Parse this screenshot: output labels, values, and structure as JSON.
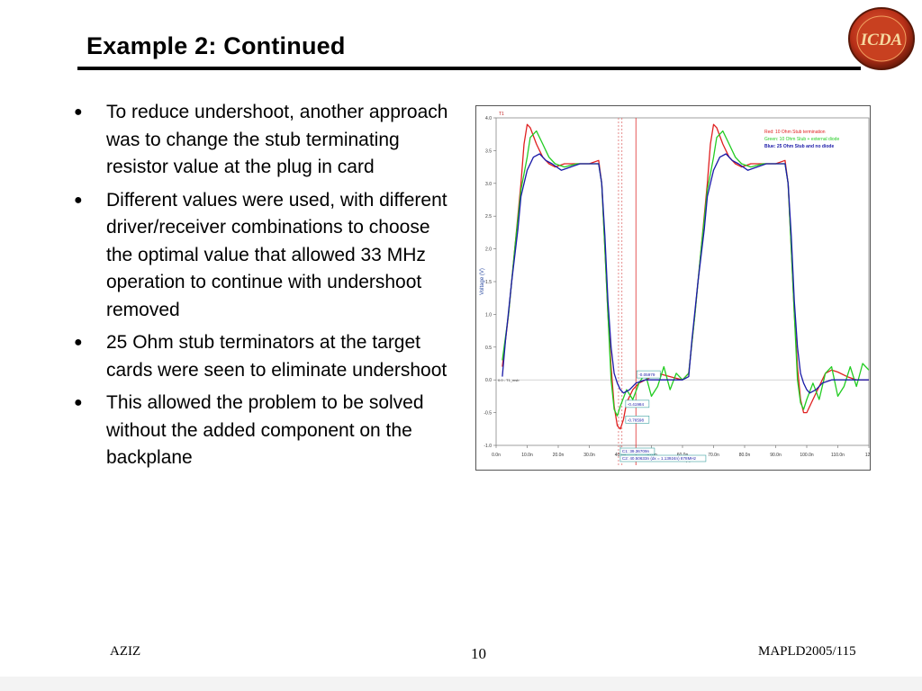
{
  "slide": {
    "title": "Example 2: Continued",
    "bullets": [
      "To reduce undershoot, another approach was to change the stub terminating resistor value at the plug in card",
      "Different values were used, with different driver/receiver combinations to choose the optimal value that allowed 33 MHz operation to continue with undershoot removed",
      "25 Ohm stub terminators at the target cards were seen to eliminate undershoot",
      "This allowed the problem to be solved without the added component on the backplane"
    ],
    "bullet_symbol": "●"
  },
  "logo": {
    "icon": "icda-logo",
    "text": "ICDA"
  },
  "footer": {
    "left": "AZIZ",
    "center": "10",
    "right": "MAPLD2005/115"
  },
  "chart_data": {
    "type": "line",
    "marker_label": "T1",
    "ylabel": "Voltage (V)",
    "xlabel": "Time (s)",
    "x_ticks": [
      "0.0n",
      "10.0n",
      "20.0n",
      "30.0n",
      "40.0n",
      "50.0n",
      "60.0n",
      "70.0n",
      "80.0n",
      "90.0n",
      "100.0n",
      "110.0n",
      "120"
    ],
    "y_ticks": [
      "4.0",
      "3.5",
      "3.0",
      "2.5",
      "2.0",
      "1.5",
      "1.0",
      "0.5",
      "0.0",
      "-0.5",
      "-1.0"
    ],
    "ylim": [
      -1.0,
      4.0
    ],
    "xlim": [
      0,
      120
    ],
    "zero_label": "0.0 - T1_msb",
    "legend": [
      {
        "name": "Red: 10 Ohm Stub termination",
        "color": "#e02020"
      },
      {
        "name": "Green: 10 Ohm Stub + external diode",
        "color": "#22cc22"
      },
      {
        "name": "Blue: 25 Ohm Stub and no diode",
        "color": "#1a1aa8"
      }
    ],
    "annotations": [
      "-0.05979",
      "-0.41984",
      "-0.76598"
    ],
    "cursors": [
      "C1: 39.36709n",
      "C2: 40.50633n (dx = 1.13924n) 878MHz"
    ],
    "cursor_x": [
      39.4,
      40.5,
      45.0
    ],
    "series": [
      {
        "name": "Red: 10 Ohm Stub termination",
        "color": "#e02020",
        "points": [
          [
            2,
            0.2
          ],
          [
            4,
            1.0
          ],
          [
            6,
            2.0
          ],
          [
            8,
            3.0
          ],
          [
            9,
            3.6
          ],
          [
            10,
            3.9
          ],
          [
            11,
            3.85
          ],
          [
            13,
            3.6
          ],
          [
            15,
            3.4
          ],
          [
            17,
            3.3
          ],
          [
            19,
            3.25
          ],
          [
            22,
            3.3
          ],
          [
            26,
            3.3
          ],
          [
            30,
            3.3
          ],
          [
            33,
            3.35
          ],
          [
            34,
            3.0
          ],
          [
            35,
            2.0
          ],
          [
            36,
            1.0
          ],
          [
            37,
            0.2
          ],
          [
            38,
            -0.4
          ],
          [
            39,
            -0.7
          ],
          [
            40,
            -0.75
          ],
          [
            41,
            -0.6
          ],
          [
            42,
            -0.35
          ],
          [
            44,
            -0.15
          ],
          [
            46,
            -0.05
          ],
          [
            49,
            0.02
          ],
          [
            52,
            0.1
          ],
          [
            56,
            0.05
          ],
          [
            60,
            0.0
          ],
          [
            62,
            0.1
          ],
          [
            64,
            1.0
          ],
          [
            66,
            2.0
          ],
          [
            68,
            3.0
          ],
          [
            69,
            3.6
          ],
          [
            70,
            3.9
          ],
          [
            71,
            3.85
          ],
          [
            73,
            3.6
          ],
          [
            75,
            3.4
          ],
          [
            77,
            3.3
          ],
          [
            79,
            3.25
          ],
          [
            82,
            3.3
          ],
          [
            86,
            3.3
          ],
          [
            90,
            3.3
          ],
          [
            93,
            3.35
          ],
          [
            94,
            3.0
          ],
          [
            95,
            2.0
          ],
          [
            96,
            1.0
          ],
          [
            97,
            0.2
          ],
          [
            98,
            -0.3
          ],
          [
            99,
            -0.5
          ],
          [
            100,
            -0.5
          ],
          [
            102,
            -0.3
          ],
          [
            104,
            -0.1
          ],
          [
            106,
            0.1
          ],
          [
            108,
            0.15
          ],
          [
            110,
            0.12
          ],
          [
            113,
            0.05
          ],
          [
            116,
            0.0
          ],
          [
            120,
            0.0
          ]
        ]
      },
      {
        "name": "Green: 10 Ohm Stub + external diode",
        "color": "#22cc22",
        "points": [
          [
            2,
            0.3
          ],
          [
            4,
            1.0
          ],
          [
            6,
            2.0
          ],
          [
            8,
            2.9
          ],
          [
            10,
            3.4
          ],
          [
            11,
            3.7
          ],
          [
            13,
            3.8
          ],
          [
            15,
            3.6
          ],
          [
            17,
            3.4
          ],
          [
            19,
            3.3
          ],
          [
            22,
            3.25
          ],
          [
            26,
            3.3
          ],
          [
            30,
            3.3
          ],
          [
            33,
            3.3
          ],
          [
            34,
            3.0
          ],
          [
            35,
            2.0
          ],
          [
            36,
            1.0
          ],
          [
            37,
            0.0
          ],
          [
            38,
            -0.45
          ],
          [
            39,
            -0.55
          ],
          [
            40,
            -0.4
          ],
          [
            42,
            -0.15
          ],
          [
            44,
            -0.3
          ],
          [
            46,
            -0.05
          ],
          [
            48,
            0.1
          ],
          [
            50,
            -0.25
          ],
          [
            52,
            -0.1
          ],
          [
            54,
            0.2
          ],
          [
            56,
            -0.15
          ],
          [
            58,
            0.1
          ],
          [
            60,
            0.0
          ],
          [
            62,
            0.1
          ],
          [
            64,
            1.0
          ],
          [
            66,
            2.0
          ],
          [
            68,
            2.9
          ],
          [
            70,
            3.4
          ],
          [
            71,
            3.7
          ],
          [
            73,
            3.8
          ],
          [
            75,
            3.6
          ],
          [
            77,
            3.4
          ],
          [
            79,
            3.3
          ],
          [
            82,
            3.25
          ],
          [
            86,
            3.3
          ],
          [
            90,
            3.3
          ],
          [
            93,
            3.3
          ],
          [
            94,
            3.0
          ],
          [
            95,
            2.0
          ],
          [
            96,
            1.0
          ],
          [
            97,
            0.0
          ],
          [
            98,
            -0.35
          ],
          [
            99,
            -0.45
          ],
          [
            100,
            -0.3
          ],
          [
            102,
            -0.05
          ],
          [
            104,
            -0.3
          ],
          [
            106,
            0.1
          ],
          [
            108,
            0.2
          ],
          [
            110,
            -0.25
          ],
          [
            112,
            -0.1
          ],
          [
            114,
            0.2
          ],
          [
            116,
            -0.1
          ],
          [
            118,
            0.25
          ],
          [
            120,
            0.15
          ]
        ]
      },
      {
        "name": "Blue: 25 Ohm Stub and no diode",
        "color": "#1a1aa8",
        "points": [
          [
            2,
            0.05
          ],
          [
            3,
            0.6
          ],
          [
            5,
            1.5
          ],
          [
            7,
            2.3
          ],
          [
            8,
            2.8
          ],
          [
            10,
            3.2
          ],
          [
            12,
            3.4
          ],
          [
            14,
            3.45
          ],
          [
            16,
            3.35
          ],
          [
            18,
            3.3
          ],
          [
            21,
            3.2
          ],
          [
            24,
            3.25
          ],
          [
            27,
            3.3
          ],
          [
            30,
            3.3
          ],
          [
            33,
            3.3
          ],
          [
            34,
            3.0
          ],
          [
            35,
            2.2
          ],
          [
            36,
            1.2
          ],
          [
            37,
            0.5
          ],
          [
            38,
            0.1
          ],
          [
            39,
            -0.05
          ],
          [
            40,
            -0.15
          ],
          [
            41,
            -0.2
          ],
          [
            43,
            -0.15
          ],
          [
            45,
            -0.05
          ],
          [
            48,
            0.0
          ],
          [
            52,
            0.0
          ],
          [
            56,
            0.0
          ],
          [
            60,
            0.0
          ],
          [
            62,
            0.05
          ],
          [
            63,
            0.6
          ],
          [
            65,
            1.5
          ],
          [
            67,
            2.3
          ],
          [
            68,
            2.8
          ],
          [
            70,
            3.2
          ],
          [
            72,
            3.4
          ],
          [
            74,
            3.45
          ],
          [
            76,
            3.35
          ],
          [
            78,
            3.3
          ],
          [
            81,
            3.2
          ],
          [
            84,
            3.25
          ],
          [
            87,
            3.3
          ],
          [
            90,
            3.3
          ],
          [
            93,
            3.3
          ],
          [
            94,
            3.0
          ],
          [
            95,
            2.2
          ],
          [
            96,
            1.2
          ],
          [
            97,
            0.5
          ],
          [
            98,
            0.1
          ],
          [
            99,
            -0.05
          ],
          [
            100,
            -0.15
          ],
          [
            101,
            -0.2
          ],
          [
            103,
            -0.15
          ],
          [
            105,
            -0.05
          ],
          [
            108,
            0.0
          ],
          [
            112,
            0.0
          ],
          [
            116,
            0.0
          ],
          [
            120,
            0.0
          ]
        ]
      }
    ]
  }
}
